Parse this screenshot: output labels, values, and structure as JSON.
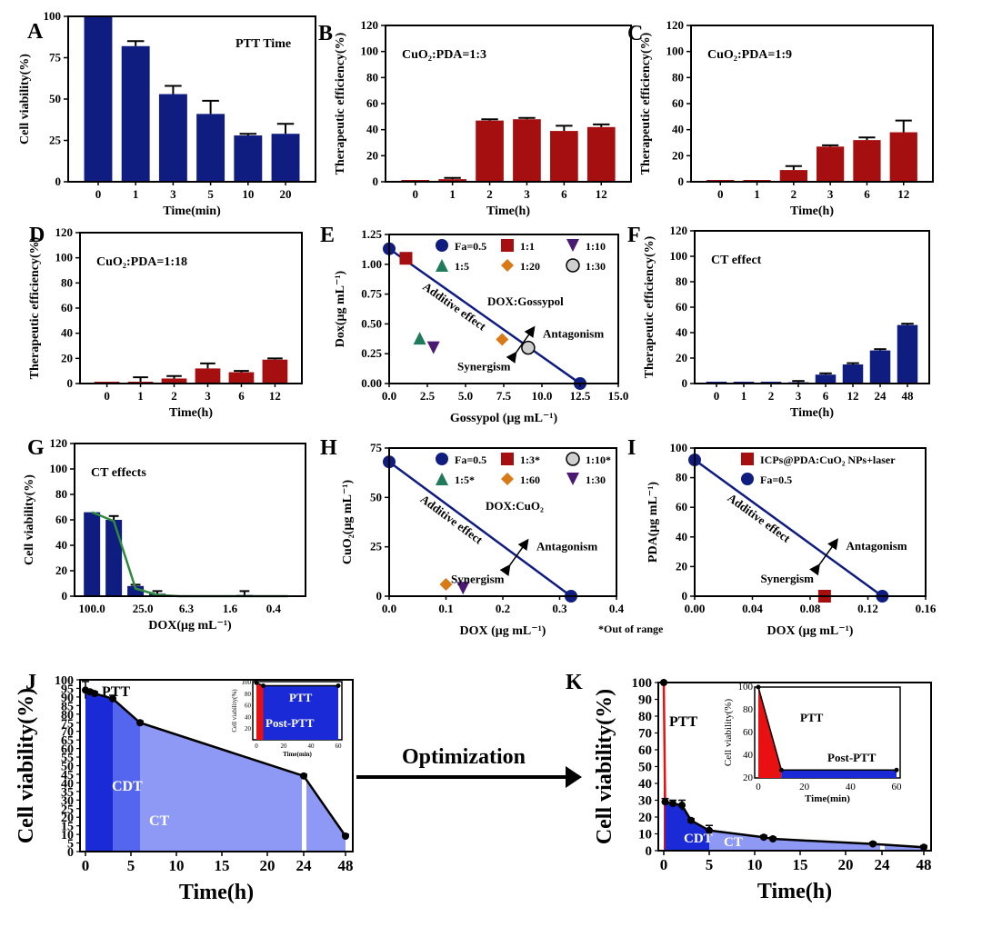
{
  "colors": {
    "navy": "#0f1c80",
    "darkred": "#a50f0f",
    "red": "#e81010",
    "blue": "#1a2ad6",
    "midblue": "#5566ee",
    "lightblue": "#8e98f5",
    "green": "#2e8a3c",
    "orange": "#d87a18",
    "purple": "#4a1a72",
    "teal": "#1e7a5a",
    "black": "#000000"
  },
  "arrow_label": "Optimization",
  "chart_data": [
    {
      "id": "A",
      "type": "bar",
      "panel_label": "A",
      "title": "PTT Time",
      "categories": [
        "0",
        "1",
        "3",
        "5",
        "10",
        "20"
      ],
      "values": [
        100,
        82,
        53,
        41,
        28,
        29
      ],
      "errors": [
        0,
        3,
        5,
        8,
        1,
        6
      ],
      "xlabel": "Time(min)",
      "ylabel": "Cell viability(%)",
      "ylim": [
        0,
        100
      ],
      "yticks": [
        "0",
        "25",
        "50",
        "75",
        "100"
      ],
      "color_key": "navy"
    },
    {
      "id": "B",
      "type": "bar",
      "panel_label": "B",
      "title": "CuO₂:PDA=1:3",
      "categories": [
        "0",
        "1",
        "2",
        "3",
        "6",
        "12"
      ],
      "values": [
        0,
        2,
        47,
        48,
        39,
        42
      ],
      "errors": [
        0,
        1,
        1,
        1,
        4,
        2
      ],
      "xlabel": "Time(h)",
      "ylabel": "Therapeutic efficiency(%)",
      "ylim": [
        0,
        120
      ],
      "yticks": [
        "0",
        "20",
        "40",
        "60",
        "80",
        "100",
        "120"
      ],
      "color_key": "darkred"
    },
    {
      "id": "C",
      "type": "bar",
      "panel_label": "C",
      "title": "CuO₂:PDA=1:9",
      "categories": [
        "0",
        "1",
        "2",
        "3",
        "6",
        "12"
      ],
      "values": [
        0,
        0,
        9,
        27,
        32,
        38
      ],
      "errors": [
        0,
        0,
        3,
        1,
        2,
        9
      ],
      "xlabel": "Time(h)",
      "ylabel": "Therapeutic efficiency(%)",
      "ylim": [
        0,
        120
      ],
      "yticks": [
        "0",
        "20",
        "40",
        "60",
        "80",
        "100",
        "120"
      ],
      "color_key": "darkred"
    },
    {
      "id": "D",
      "type": "bar",
      "panel_label": "D",
      "title": "CuO₂:PDA=1:18",
      "categories": [
        "0",
        "1",
        "2",
        "3",
        "6",
        "12"
      ],
      "values": [
        0,
        0,
        4,
        12,
        9,
        19
      ],
      "errors": [
        0,
        5,
        2,
        4,
        1,
        1
      ],
      "xlabel": "Time(h)",
      "ylabel": "Therapeutic efficiency(%)",
      "ylim": [
        0,
        120
      ],
      "yticks": [
        "0",
        "20",
        "40",
        "60",
        "80",
        "100",
        "120"
      ],
      "color_key": "darkred"
    },
    {
      "id": "E",
      "type": "scatter",
      "panel_label": "E",
      "annotation": "DOX:Gossypol",
      "xlabel": "Gossypol (μg mL⁻¹)",
      "ylabel": "Dox(μg mL⁻¹)",
      "xlim": [
        0,
        15
      ],
      "ylim": [
        0,
        1.25
      ],
      "xticks": [
        "0.0",
        "2.5",
        "5.0",
        "7.5",
        "10.0",
        "12.5",
        "15.0"
      ],
      "yticks": [
        "0.00",
        "0.25",
        "0.50",
        "0.75",
        "1.00",
        "1.25"
      ],
      "line": {
        "x": [
          0,
          12.5
        ],
        "y": [
          1.13,
          0
        ]
      },
      "additive_label": "Additive effect",
      "antagonism_label": "Antagonism",
      "synergism_label": "Synergism",
      "series": [
        {
          "name": "Fa=0.5",
          "marker": "circle",
          "color_key": "navy",
          "x": [
            0,
            12.5
          ],
          "y": [
            1.13,
            0
          ]
        },
        {
          "name": "1:1",
          "marker": "square",
          "color_key": "darkred",
          "x": [
            1.1
          ],
          "y": [
            1.05
          ]
        },
        {
          "name": "1:10",
          "marker": "tri-down",
          "color_key": "purple",
          "x": [
            2.9
          ],
          "y": [
            0.3
          ]
        },
        {
          "name": "1:5",
          "marker": "tri-up",
          "color_key": "teal",
          "x": [
            2.0
          ],
          "y": [
            0.38
          ]
        },
        {
          "name": "1:20",
          "marker": "diamond",
          "color_key": "orange",
          "x": [
            7.4
          ],
          "y": [
            0.37
          ]
        },
        {
          "name": "1:30",
          "marker": "open-circle",
          "color_key": "black",
          "x": [
            9.1
          ],
          "y": [
            0.3
          ]
        }
      ]
    },
    {
      "id": "F",
      "type": "bar",
      "panel_label": "F",
      "title": "CT effect",
      "categories": [
        "0",
        "1",
        "2",
        "3",
        "6",
        "12",
        "24",
        "48"
      ],
      "values": [
        0,
        0,
        0,
        1,
        7,
        15,
        26,
        46
      ],
      "errors": [
        0,
        0,
        0,
        1,
        1,
        1,
        1,
        1
      ],
      "xlabel": "Time(h)",
      "ylabel": "Therapeutic efficiency(%)",
      "ylim": [
        0,
        120
      ],
      "yticks": [
        "0",
        "20",
        "40",
        "60",
        "80",
        "100",
        "120"
      ],
      "color_key": "navy"
    },
    {
      "id": "G",
      "type": "bar",
      "panel_label": "G",
      "title": "CT effects",
      "categories": [
        "100.0",
        "",
        "25.0",
        "",
        "6.3",
        "",
        "1.6",
        "",
        "0.4",
        ""
      ],
      "xtick_labels": [
        "100.0",
        "25.0",
        "6.3",
        "1.6",
        "0.4"
      ],
      "values": [
        66,
        60,
        8,
        2,
        0,
        0,
        0,
        1,
        0,
        0
      ],
      "errors": [
        0,
        3,
        1,
        2,
        0,
        0,
        0,
        3,
        0,
        0
      ],
      "line_values": [
        66,
        59,
        6,
        1,
        0,
        0,
        0,
        0,
        0,
        0
      ],
      "xlabel": "DOX(μg mL⁻¹)",
      "ylabel": "Cell viability(%)",
      "ylim": [
        0,
        120
      ],
      "yticks": [
        "0",
        "20",
        "40",
        "60",
        "80",
        "100",
        "120"
      ],
      "color_key": "navy",
      "line_color_key": "green"
    },
    {
      "id": "H",
      "type": "scatter",
      "panel_label": "H",
      "annotation": "DOX:CuO₂",
      "footnote": "*Out of range",
      "xlabel": "DOX (μg mL⁻¹)",
      "ylabel": "CuO₂(μg mL⁻¹)",
      "xlim": [
        0,
        0.4
      ],
      "ylim": [
        0,
        75
      ],
      "xticks": [
        "0.0",
        "0.1",
        "0.2",
        "0.3",
        "0.4"
      ],
      "yticks": [
        "0",
        "25",
        "50",
        "75"
      ],
      "line": {
        "x": [
          0,
          0.32
        ],
        "y": [
          68,
          0
        ]
      },
      "additive_label": "Additive effect",
      "antagonism_label": "Antagonism",
      "synergism_label": "Synergism",
      "series": [
        {
          "name": "Fa=0.5",
          "marker": "circle",
          "color_key": "navy",
          "x": [
            0,
            0.32
          ],
          "y": [
            68,
            0
          ]
        },
        {
          "name": "1:3*",
          "marker": "square",
          "color_key": "darkred",
          "x": [],
          "y": []
        },
        {
          "name": "1:10*",
          "marker": "open-circle",
          "color_key": "black",
          "x": [],
          "y": []
        },
        {
          "name": "1:5*",
          "marker": "tri-up",
          "color_key": "teal",
          "x": [],
          "y": []
        },
        {
          "name": "1:60",
          "marker": "diamond",
          "color_key": "orange",
          "x": [
            0.1
          ],
          "y": [
            6
          ]
        },
        {
          "name": "1:30",
          "marker": "tri-down",
          "color_key": "purple",
          "x": [
            0.13
          ],
          "y": [
            4
          ]
        }
      ]
    },
    {
      "id": "I",
      "type": "scatter",
      "panel_label": "I",
      "xlabel": "DOX (μg mL⁻¹)",
      "ylabel": "PDA(μg mL⁻¹)",
      "xlim": [
        0,
        0.16
      ],
      "ylim": [
        0,
        100
      ],
      "xticks": [
        "0.00",
        "0.04",
        "0.08",
        "0.12",
        "0.16"
      ],
      "yticks": [
        "0",
        "20",
        "40",
        "60",
        "80",
        "100"
      ],
      "line": {
        "x": [
          0,
          0.13
        ],
        "y": [
          92,
          0
        ]
      },
      "additive_label": "Additive effect",
      "antagonism_label": "Antagonism",
      "synergism_label": "Synergism",
      "series": [
        {
          "name": "ICPs@PDA:CuO₂ NPs+laser",
          "marker": "square",
          "color_key": "darkred",
          "x": [
            0.09
          ],
          "y": [
            0
          ]
        },
        {
          "name": "Fa=0.5",
          "marker": "circle",
          "color_key": "navy",
          "x": [
            0,
            0.13
          ],
          "y": [
            92,
            0
          ]
        }
      ]
    },
    {
      "id": "J",
      "type": "area",
      "panel_label": "J",
      "xlabel": "Time(h)",
      "ylabel": "Cell viability(%)",
      "ylim": [
        0,
        100
      ],
      "yticks": [
        "0",
        "5",
        "10",
        "15",
        "20",
        "25",
        "30",
        "35",
        "40",
        "45",
        "50",
        "55",
        "60",
        "65",
        "70",
        "75",
        "80",
        "85",
        "90",
        "95",
        "100"
      ],
      "xticks": [
        "0",
        "5",
        "10",
        "15",
        "20",
        "24",
        "48"
      ],
      "x": [
        0,
        0.5,
        1,
        3,
        6,
        24,
        48
      ],
      "y": [
        94,
        93,
        92,
        89,
        75,
        44,
        9
      ],
      "errors": [
        5,
        1,
        1,
        2,
        1,
        1,
        1
      ],
      "region_labels": [
        "PTT",
        "CDT",
        "CT"
      ],
      "inset": {
        "xlabel": "Time(min)",
        "ylabel": "Cell viability(%)",
        "xticks": [
          "0",
          "20",
          "40",
          "60"
        ],
        "yticks": [
          "20",
          "40",
          "60",
          "80",
          "100"
        ],
        "x": [
          0,
          5,
          60
        ],
        "y": [
          98,
          93,
          93
        ],
        "labels": [
          "PTT",
          "Post-PTT"
        ]
      }
    },
    {
      "id": "K",
      "type": "area",
      "panel_label": "K",
      "xlabel": "Time(h)",
      "ylabel": "Cell viability(%)",
      "ylim": [
        0,
        100
      ],
      "yticks": [
        "0",
        "10",
        "20",
        "30",
        "40",
        "50",
        "60",
        "70",
        "80",
        "90",
        "100"
      ],
      "xticks": [
        "0",
        "5",
        "10",
        "15",
        "20",
        "24",
        "48"
      ],
      "x": [
        0,
        0.15,
        1,
        2,
        3,
        5,
        11,
        12,
        23,
        48
      ],
      "y": [
        100,
        29,
        28,
        27,
        18,
        12,
        8,
        7,
        4,
        2
      ],
      "errors": [
        0,
        2,
        2,
        3,
        1,
        3,
        1,
        1,
        1,
        1
      ],
      "region_labels": [
        "PTT",
        "CDT",
        "CT"
      ],
      "inset": {
        "xlabel": "Time(min)",
        "ylabel": "Cell viability(%)",
        "xticks": [
          "0",
          "20",
          "40",
          "60"
        ],
        "yticks": [
          "20",
          "40",
          "60",
          "80",
          "100"
        ],
        "x": [
          0,
          10,
          60
        ],
        "y": [
          100,
          27,
          27
        ],
        "labels": [
          "PTT",
          "Post-PTT"
        ]
      }
    }
  ]
}
